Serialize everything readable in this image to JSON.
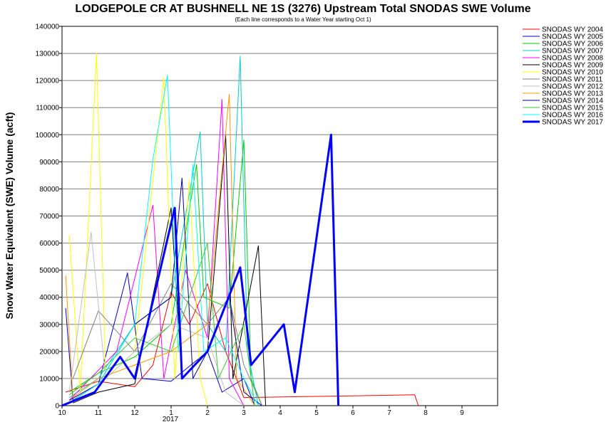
{
  "chart_data": {
    "type": "line",
    "title": "LODGEPOLE CR AT BUSHNELL NE 1S (3276) Upstream Total SNODAS SWE Volume",
    "subtitle": "(Each line corresponds to a Water Year starting Oct 1)",
    "ylabel": "Snow Water Equivalent (SWE) Volume (acft)",
    "xlabel": "",
    "ylim": [
      0,
      140000
    ],
    "y_ticks": [
      0,
      10000,
      20000,
      30000,
      40000,
      50000,
      60000,
      70000,
      80000,
      90000,
      100000,
      110000,
      120000,
      130000,
      140000
    ],
    "x_ticks": [
      "10",
      "11",
      "12",
      "1",
      "2",
      "3",
      "4",
      "5",
      "6",
      "7",
      "8",
      "9"
    ],
    "x_year_label": "2017",
    "grid": "horizontal",
    "legend_position": "right",
    "series": [
      {
        "name": "SNODAS WY 2004",
        "color": "#ff0000",
        "width": 1,
        "points": [
          [
            0.1,
            5000
          ],
          [
            1.0,
            9000
          ],
          [
            2.0,
            7000
          ],
          [
            2.5,
            15000
          ],
          [
            3.0,
            42000
          ],
          [
            3.5,
            30000
          ],
          [
            4.0,
            45000
          ],
          [
            4.5,
            20000
          ],
          [
            5.0,
            3000
          ],
          [
            9.7,
            4000
          ],
          [
            9.8,
            0
          ]
        ]
      },
      {
        "name": "SNODAS WY 2005",
        "color": "#0000cc",
        "width": 1,
        "points": [
          [
            0.1,
            36000
          ],
          [
            0.3,
            2000
          ],
          [
            1.0,
            8000
          ],
          [
            1.8,
            49000
          ],
          [
            2.2,
            10000
          ],
          [
            3.0,
            9000
          ],
          [
            4.0,
            20000
          ],
          [
            4.4,
            5000
          ],
          [
            5.0,
            10000
          ],
          [
            5.3,
            0
          ]
        ]
      },
      {
        "name": "SNODAS WY 2006",
        "color": "#00cc00",
        "width": 1,
        "points": [
          [
            0.2,
            5000
          ],
          [
            1.0,
            12000
          ],
          [
            2.0,
            18000
          ],
          [
            3.0,
            30000
          ],
          [
            3.7,
            89000
          ],
          [
            3.9,
            40000
          ],
          [
            4.6,
            36000
          ],
          [
            5.0,
            98000
          ],
          [
            5.2,
            10000
          ],
          [
            5.5,
            0
          ]
        ]
      },
      {
        "name": "SNODAS WY 2007",
        "color": "#00cccc",
        "width": 1,
        "points": [
          [
            0.2,
            3000
          ],
          [
            1.0,
            10000
          ],
          [
            2.0,
            30000
          ],
          [
            3.0,
            40000
          ],
          [
            3.8,
            101000
          ],
          [
            4.0,
            30000
          ],
          [
            4.5,
            20000
          ],
          [
            4.9,
            129000
          ],
          [
            5.1,
            20000
          ],
          [
            5.4,
            0
          ]
        ]
      },
      {
        "name": "SNODAS WY 2008",
        "color": "#ff00ff",
        "width": 1,
        "points": [
          [
            0.2,
            2000
          ],
          [
            1.5,
            20000
          ],
          [
            2.5,
            74000
          ],
          [
            2.8,
            10000
          ],
          [
            3.4,
            50000
          ],
          [
            4.0,
            25000
          ],
          [
            4.4,
            113000
          ],
          [
            4.6,
            10000
          ],
          [
            5.0,
            0
          ]
        ]
      },
      {
        "name": "SNODAS WY 2009",
        "color": "#000000",
        "width": 1,
        "points": [
          [
            0.3,
            1000
          ],
          [
            1.0,
            5000
          ],
          [
            2.0,
            8000
          ],
          [
            3.0,
            73000
          ],
          [
            3.3,
            10000
          ],
          [
            4.0,
            20000
          ],
          [
            4.5,
            100000
          ],
          [
            4.7,
            10000
          ],
          [
            5.4,
            59000
          ],
          [
            5.6,
            0
          ]
        ]
      },
      {
        "name": "SNODAS WY 2010",
        "color": "#ffff00",
        "width": 1,
        "points": [
          [
            0.2,
            63000
          ],
          [
            0.5,
            5000
          ],
          [
            0.95,
            130000
          ],
          [
            1.2,
            10000
          ],
          [
            2.0,
            20000
          ],
          [
            2.8,
            121000
          ],
          [
            3.1,
            10000
          ],
          [
            3.5,
            83000
          ],
          [
            3.8,
            10000
          ],
          [
            4.0,
            0
          ]
        ]
      },
      {
        "name": "SNODAS WY 2011",
        "color": "#808080",
        "width": 1,
        "points": [
          [
            0.3,
            10000
          ],
          [
            1.0,
            35000
          ],
          [
            2.0,
            20000
          ],
          [
            3.0,
            45000
          ],
          [
            4.0,
            30000
          ],
          [
            4.6,
            40000
          ],
          [
            5.0,
            15000
          ],
          [
            5.5,
            0
          ]
        ]
      },
      {
        "name": "SNODAS WY 2012",
        "color": "#c0c0c0",
        "width": 1,
        "points": [
          [
            0.2,
            5000
          ],
          [
            0.8,
            64000
          ],
          [
            1.2,
            10000
          ],
          [
            2.0,
            20000
          ],
          [
            3.0,
            30000
          ],
          [
            4.0,
            25000
          ],
          [
            4.5,
            5000
          ],
          [
            5.0,
            0
          ]
        ]
      },
      {
        "name": "SNODAS WY 2013",
        "color": "#ff9900",
        "width": 1,
        "points": [
          [
            0.1,
            48000
          ],
          [
            0.3,
            3000
          ],
          [
            1.0,
            10000
          ],
          [
            2.0,
            15000
          ],
          [
            3.0,
            20000
          ],
          [
            4.0,
            30000
          ],
          [
            4.6,
            115000
          ],
          [
            4.8,
            10000
          ],
          [
            5.3,
            0
          ]
        ]
      },
      {
        "name": "SNODAS WY 2014",
        "color": "#000099",
        "width": 1,
        "points": [
          [
            0.2,
            2000
          ],
          [
            1.0,
            8000
          ],
          [
            2.0,
            30000
          ],
          [
            3.0,
            40000
          ],
          [
            3.3,
            84000
          ],
          [
            3.6,
            10000
          ],
          [
            4.0,
            20000
          ],
          [
            4.6,
            40000
          ],
          [
            5.0,
            5000
          ],
          [
            5.5,
            0
          ]
        ]
      },
      {
        "name": "SNODAS WY 2015",
        "color": "#33cc33",
        "width": 1,
        "points": [
          [
            0.2,
            4000
          ],
          [
            1.0,
            12000
          ],
          [
            2.0,
            25000
          ],
          [
            3.0,
            20000
          ],
          [
            4.0,
            60000
          ],
          [
            4.3,
            10000
          ],
          [
            5.0,
            30000
          ],
          [
            5.3,
            0
          ]
        ]
      },
      {
        "name": "SNODAS WY 2016",
        "color": "#00ffff",
        "width": 1,
        "points": [
          [
            0.2,
            1000
          ],
          [
            1.0,
            8000
          ],
          [
            2.0,
            30000
          ],
          [
            2.5,
            91000
          ],
          [
            2.9,
            122000
          ],
          [
            3.2,
            20000
          ],
          [
            3.6,
            89000
          ],
          [
            3.9,
            20000
          ],
          [
            4.5,
            25000
          ],
          [
            5.0,
            10000
          ],
          [
            5.4,
            0
          ]
        ]
      },
      {
        "name": "SNODAS WY 2017",
        "color": "#0000ff",
        "width": 3,
        "points": [
          [
            0.0,
            0
          ],
          [
            0.9,
            5000
          ],
          [
            1.6,
            18000
          ],
          [
            2.0,
            10000
          ],
          [
            3.1,
            73000
          ],
          [
            3.3,
            10000
          ],
          [
            4.0,
            20000
          ],
          [
            4.9,
            51000
          ],
          [
            5.2,
            15000
          ],
          [
            6.1,
            30000
          ],
          [
            6.4,
            5000
          ],
          [
            7.4,
            100000
          ],
          [
            7.6,
            0
          ]
        ]
      }
    ]
  }
}
